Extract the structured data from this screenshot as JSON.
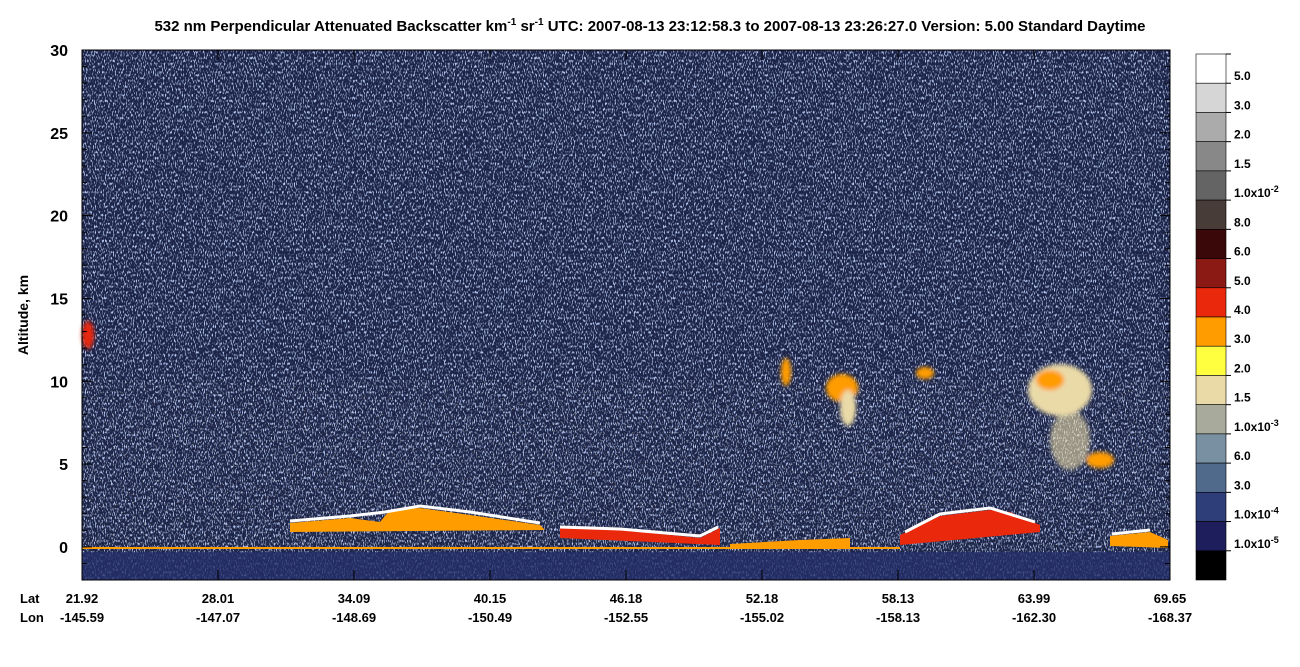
{
  "chart_data": {
    "type": "heatmap",
    "title": [
      {
        "text": "532 nm Perpendicular Attenuated Backscatter km"
      },
      {
        "sup": "-1"
      },
      {
        "text": " sr"
      },
      {
        "sup": "-1"
      },
      {
        "text": "  UTC: 2007-08-13 23:12:58.3 to 2007-08-13 23:26:27.0  Version: 5.00 Standard Daytime"
      }
    ],
    "ylabel": "Altitude, km",
    "ylim": [
      -2,
      30
    ],
    "yticks": [
      0,
      5,
      10,
      15,
      20,
      25,
      30
    ],
    "x_rows": [
      {
        "name": "Lat",
        "labels": [
          "21.92",
          "28.01",
          "34.09",
          "40.15",
          "46.18",
          "52.18",
          "58.13",
          "63.99",
          "69.65"
        ]
      },
      {
        "name": "Lon",
        "labels": [
          "-145.59",
          "-147.07",
          "-148.69",
          "-150.49",
          "-152.55",
          "-155.02",
          "-158.13",
          "-162.30",
          "-168.37"
        ]
      }
    ],
    "colorbar": [
      {
        "color": "#ffffff",
        "label": "5.0"
      },
      {
        "color": "#d6d6d6",
        "label": "3.0"
      },
      {
        "color": "#ababab",
        "label": "2.0"
      },
      {
        "color": "#888888",
        "label": "1.5"
      },
      {
        "color": "#646464",
        "label": "1.0x10",
        "sup": "-2"
      },
      {
        "color": "#473c38",
        "label": "8.0"
      },
      {
        "color": "#3a0808",
        "label": "6.0"
      },
      {
        "color": "#8c1a14",
        "label": "5.0"
      },
      {
        "color": "#ea280c",
        "label": "4.0"
      },
      {
        "color": "#ff9c00",
        "label": "3.0"
      },
      {
        "color": "#ffff40",
        "label": "2.0"
      },
      {
        "color": "#eadaa8",
        "label": "1.5"
      },
      {
        "color": "#a8aa9c",
        "label": "1.0x10",
        "sup": "-3"
      },
      {
        "color": "#7890a2",
        "label": "6.0"
      },
      {
        "color": "#506a8c",
        "label": "3.0"
      },
      {
        "color": "#2e3e78",
        "label": "1.0x10",
        "sup": "-4"
      },
      {
        "color": "#1e1e5c",
        "label": "1.0x10",
        "sup": "-5"
      },
      {
        "color": "#000000"
      }
    ]
  }
}
